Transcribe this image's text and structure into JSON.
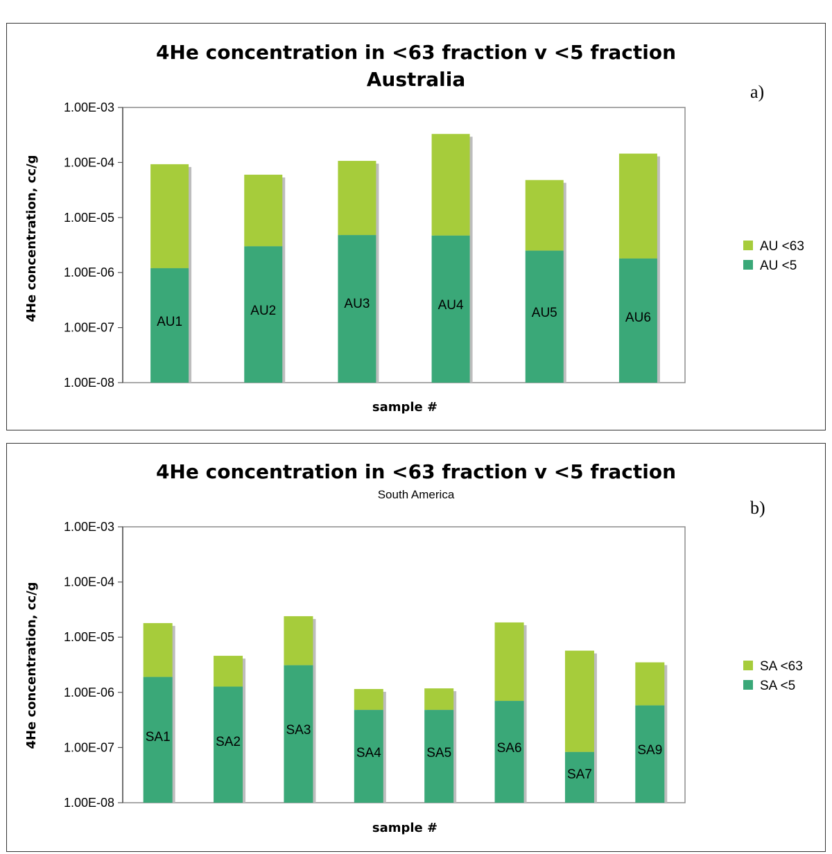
{
  "chart_data": [
    {
      "type": "bar",
      "stacked": true,
      "panel_letter": "a)",
      "title": "4He concentration in <63 fraction v <5 fraction",
      "subtitle": "Australia",
      "xlabel": "sample #",
      "ylabel": "4He concentration, cc/g",
      "yscale": "log",
      "ylim": [
        1e-08,
        0.001
      ],
      "yticks": [
        "1.00E-08",
        "1.00E-07",
        "1.00E-06",
        "1.00E-05",
        "1.00E-04",
        "1.00E-03"
      ],
      "categories": [
        "AU1",
        "AU2",
        "AU3",
        "AU4",
        "AU5",
        "AU6"
      ],
      "series": [
        {
          "name": "AU <5",
          "color": "#3aa878",
          "values": [
            1.2e-06,
            3e-06,
            4.8e-06,
            4.7e-06,
            2.5e-06,
            1.8e-06
          ]
        },
        {
          "name": "AU <63",
          "color": "#a6cc3b",
          "values": [
            9.3e-05,
            6e-05,
            0.000107,
            0.00033,
            4.8e-05,
            0.000145
          ]
        }
      ],
      "legend_position": "right",
      "grid": false
    },
    {
      "type": "bar",
      "stacked": true,
      "panel_letter": "b)",
      "title": "4He concentration in <63 fraction v <5 fraction",
      "subtitle": "South America",
      "xlabel": "sample #",
      "ylabel": "4He concentration, cc/g",
      "yscale": "log",
      "ylim": [
        1e-08,
        0.001
      ],
      "yticks": [
        "1.00E-08",
        "1.00E-07",
        "1.00E-06",
        "1.00E-05",
        "1.00E-04",
        "1.00E-03"
      ],
      "categories": [
        "SA1",
        "SA2",
        "SA3",
        "SA4",
        "SA5",
        "SA6",
        "SA7",
        "SA9"
      ],
      "series": [
        {
          "name": "SA <5",
          "color": "#3aa878",
          "values": [
            1.9e-06,
            1.27e-06,
            3.1e-06,
            4.8e-07,
            4.8e-07,
            7e-07,
            8.3e-08,
            5.8e-07
          ]
        },
        {
          "name": "SA <63",
          "color": "#a6cc3b",
          "values": [
            1.8e-05,
            4.6e-06,
            2.4e-05,
            1.15e-06,
            1.18e-06,
            1.85e-05,
            5.7e-06,
            3.5e-06
          ]
        }
      ],
      "legend_position": "right",
      "grid": false
    }
  ]
}
